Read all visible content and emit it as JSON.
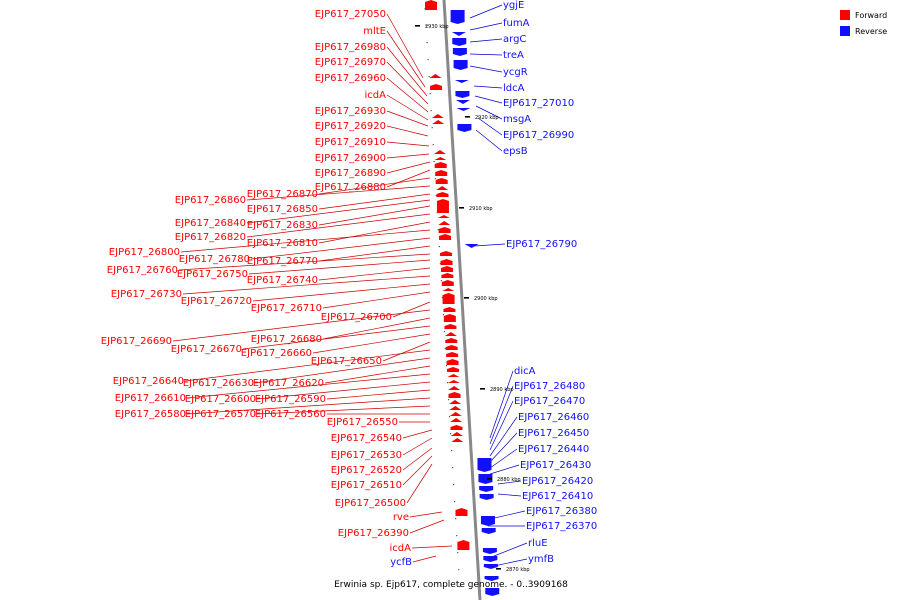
{
  "caption": "Erwinia sp. Ejp617, complete genome. - 0..3909168",
  "colors": {
    "forward": "#ff0000",
    "reverse": "#1010ff",
    "leader": "#cc0000",
    "leader_rev": "#0000cc",
    "axis": "#888888",
    "tick": "#000000"
  },
  "legend": [
    {
      "label": "Forward",
      "color": "#ff0000"
    },
    {
      "label": "Reverse",
      "color": "#1010ff"
    }
  ],
  "ticks": [
    "2930 kbp",
    "2920 kbp",
    "2910 kbp",
    "2900 kbp",
    "2890 kbp",
    "2880 kbp",
    "2870 kbp"
  ],
  "forward_labels": [
    "EJP617_27050",
    "mltE",
    "EJP617_26980",
    "EJP617_26970",
    "EJP617_26960",
    "icdA",
    "EJP617_26930",
    "EJP617_26920",
    "EJP617_26910",
    "EJP617_26900",
    "EJP617_26890",
    "EJP617_26880",
    "EJP617_26870",
    "EJP617_26860",
    "EJP617_26850",
    "EJP617_26840",
    "EJP617_26830",
    "EJP617_26820",
    "EJP617_26810",
    "EJP617_26800",
    "EJP617_26780",
    "EJP617_26770",
    "EJP617_26760",
    "EJP617_26750",
    "EJP617_26740",
    "EJP617_26730",
    "EJP617_26720",
    "EJP617_26710",
    "EJP617_26700",
    "EJP617_26690",
    "EJP617_26680",
    "EJP617_26670",
    "EJP617_26660",
    "EJP617_26650",
    "EJP617_26640",
    "EJP617_26630",
    "EJP617_26620",
    "EJP617_26610",
    "EJP617_26600",
    "EJP617_26590",
    "EJP617_26580",
    "EJP617_26570",
    "EJP617_26560",
    "EJP617_26550",
    "EJP617_26540",
    "EJP617_26530",
    "EJP617_26520",
    "EJP617_26510",
    "EJP617_26500",
    "rve",
    "EJP617_26390",
    "icdA",
    "ycfB"
  ],
  "reverse_labels": [
    "ygjE",
    "fumA",
    "argC",
    "treA",
    "ycgR",
    "ldcA",
    "EJP617_27010",
    "msgA",
    "EJP617_26990",
    "epsB",
    "EJP617_26790",
    "dicA",
    "EJP617_26480",
    "EJP617_26470",
    "EJP617_26460",
    "EJP617_26450",
    "EJP617_26440",
    "EJP617_26430",
    "EJP617_26420",
    "EJP617_26410",
    "EJP617_26380",
    "EJP617_26370",
    "rluE",
    "ymfB"
  ]
}
